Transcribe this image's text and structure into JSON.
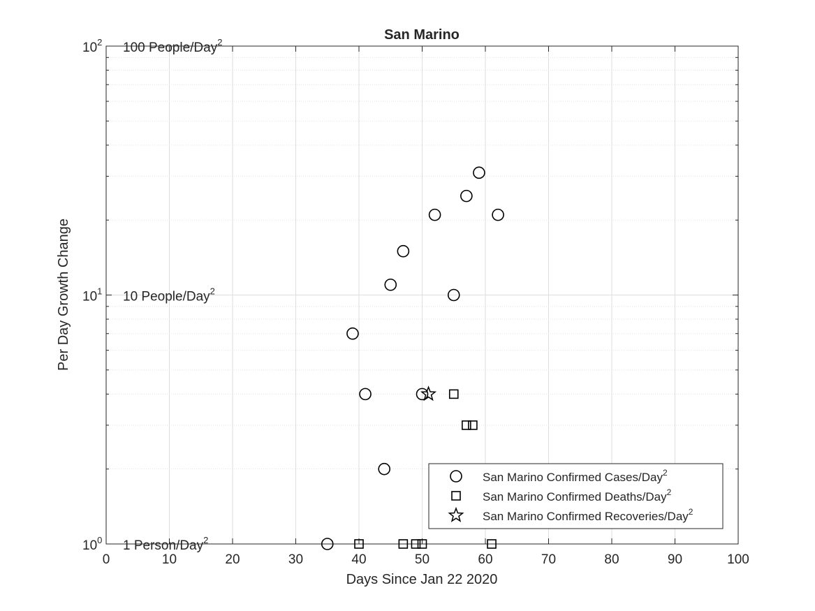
{
  "chart_data": {
    "type": "scatter",
    "title": "San Marino",
    "xlabel": "Days Since Jan 22 2020",
    "ylabel": "Per Day Growth Change",
    "xlim": [
      0,
      100
    ],
    "ylim": [
      1,
      100
    ],
    "yscale": "log",
    "grid": true,
    "legend_position": "bottom-right",
    "x_ticks": [
      "0",
      "10",
      "20",
      "30",
      "40",
      "50",
      "60",
      "70",
      "80",
      "90",
      "100"
    ],
    "x_tick_values": [
      0,
      10,
      20,
      30,
      40,
      50,
      60,
      70,
      80,
      90,
      100
    ],
    "y_ticks": [
      {
        "value": 1,
        "base": "10",
        "exp": "0"
      },
      {
        "value": 10,
        "base": "10",
        "exp": "1"
      },
      {
        "value": 100,
        "base": "10",
        "exp": "2"
      }
    ],
    "annotations": [
      {
        "y": 100,
        "text": "100 People/Day",
        "sup": "2"
      },
      {
        "y": 10,
        "text": "10 People/Day",
        "sup": "2"
      },
      {
        "y": 1,
        "text": "1 Person/Day",
        "sup": "2"
      }
    ],
    "series": [
      {
        "name": "San Marino Confirmed Cases/Day",
        "name_sup": "2",
        "marker": "circle",
        "color": "#000000",
        "x": [
          35,
          39,
          41,
          44,
          45,
          47,
          50,
          52,
          55,
          57,
          59,
          62
        ],
        "y": [
          1,
          7,
          4,
          2,
          11,
          15,
          4,
          21,
          10,
          25,
          31,
          21
        ]
      },
      {
        "name": "San Marino Confirmed Deaths/Day",
        "name_sup": "2",
        "marker": "square",
        "color": "#000000",
        "x": [
          40,
          47,
          49,
          50,
          55,
          57,
          58,
          61
        ],
        "y": [
          1,
          1,
          1,
          1,
          4,
          3,
          3,
          1
        ]
      },
      {
        "name": "San Marino Confirmed Recoveries/Day",
        "name_sup": "2",
        "marker": "star",
        "color": "#000000",
        "x": [
          51
        ],
        "y": [
          4
        ]
      }
    ]
  }
}
